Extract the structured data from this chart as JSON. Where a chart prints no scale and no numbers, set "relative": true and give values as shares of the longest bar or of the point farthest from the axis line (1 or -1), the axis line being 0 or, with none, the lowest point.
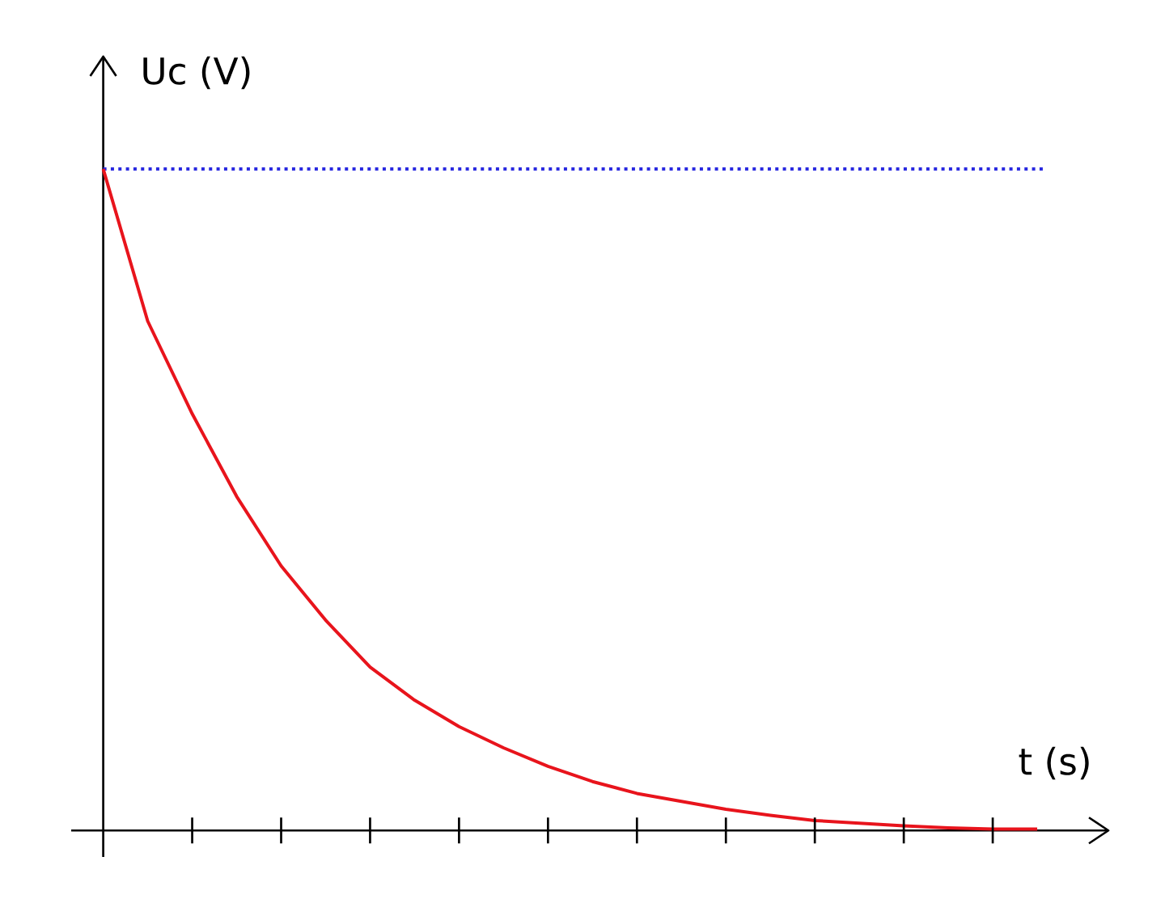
{
  "chart_data": {
    "type": "line",
    "relative": true,
    "xlabel": "t (s)",
    "ylabel": "Uc (V)",
    "categories": [
      null,
      null,
      null,
      null,
      null,
      null,
      null,
      null,
      null,
      null,
      null,
      null,
      null,
      null,
      null,
      null,
      null,
      null,
      null,
      null,
      null,
      null
    ],
    "series": [
      {
        "color": "#e8141c",
        "values": [
          1,
          0.77,
          0.63,
          0.505,
          0.4,
          0.318,
          0.247,
          0.197,
          0.157,
          0.125,
          0.097,
          0.074,
          0.056,
          0.044,
          0.032,
          0.023,
          0.015,
          0.011,
          0.007,
          0.004,
          0.002,
          0.002
        ]
      }
    ],
    "ref_lines": [
      {
        "axis": "y",
        "value": 1,
        "color": "#2a2ae0",
        "line_style": "dotted"
      }
    ],
    "marker": "none",
    "line_style": "solid"
  }
}
